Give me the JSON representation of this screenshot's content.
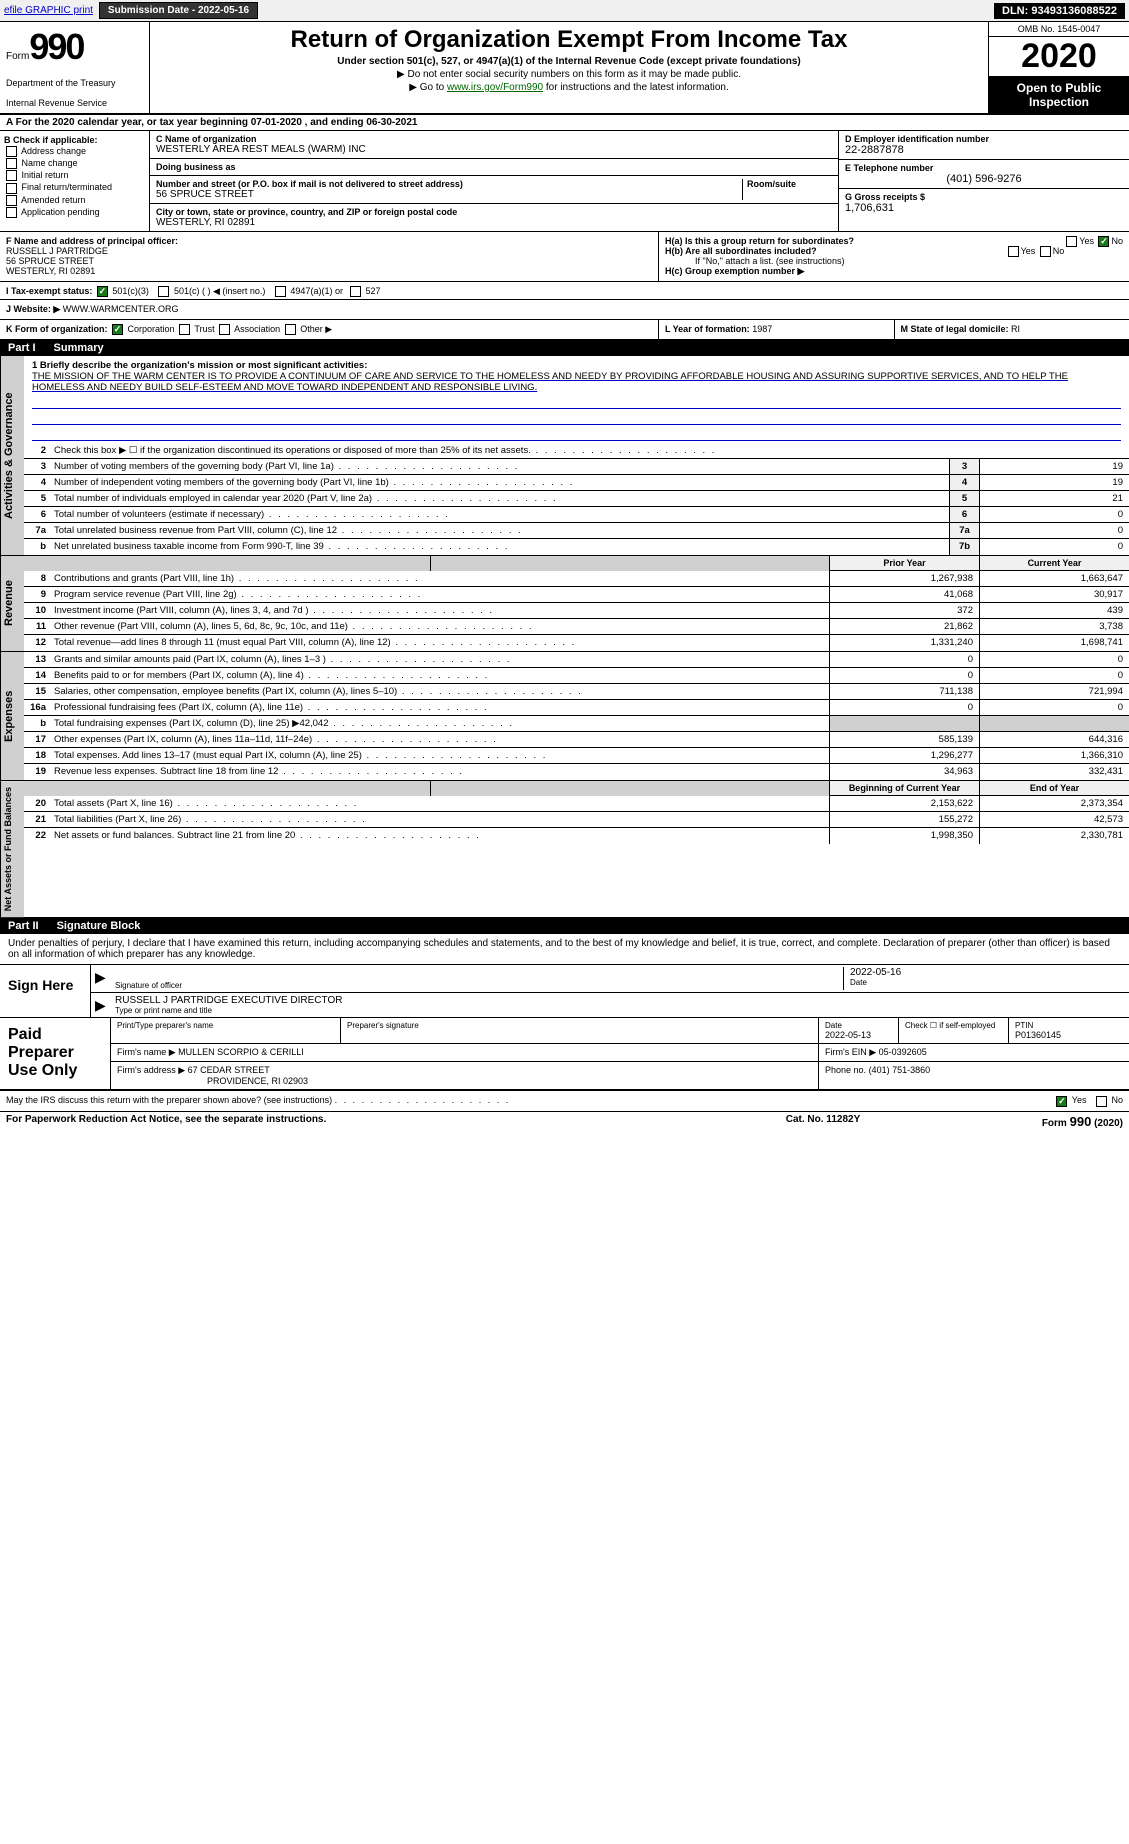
{
  "topbar": {
    "efile": "efile GRAPHIC print",
    "submission_label": "Submission Date - ",
    "submission_date": "2022-05-16",
    "dln_label": "DLN: ",
    "dln": "93493136088522"
  },
  "header": {
    "form_word": "Form",
    "form_number": "990",
    "dept1": "Department of the Treasury",
    "dept2": "Internal Revenue Service",
    "title": "Return of Organization Exempt From Income Tax",
    "subtitle": "Under section 501(c), 527, or 4947(a)(1) of the Internal Revenue Code (except private foundations)",
    "note1": "▶ Do not enter social security numbers on this form as it may be made public.",
    "note2_pre": "▶ Go to ",
    "note2_link": "www.irs.gov/Form990",
    "note2_post": " for instructions and the latest information.",
    "omb": "OMB No. 1545-0047",
    "year": "2020",
    "open": "Open to Public Inspection"
  },
  "sectionA": "A For the 2020 calendar year, or tax year beginning 07-01-2020    , and ending 06-30-2021",
  "boxB": {
    "header": "B Check if applicable:",
    "items": [
      "Address change",
      "Name change",
      "Initial return",
      "Final return/terminated",
      "Amended return",
      "Application pending"
    ]
  },
  "boxC": {
    "name_lbl": "C Name of organization",
    "name": "WESTERLY AREA REST MEALS (WARM) INC",
    "dba_lbl": "Doing business as",
    "dba": "",
    "addr_lbl": "Number and street (or P.O. box if mail is not delivered to street address)",
    "addr": "56 SPRUCE STREET",
    "room_lbl": "Room/suite",
    "city_lbl": "City or town, state or province, country, and ZIP or foreign postal code",
    "city": "WESTERLY, RI  02891"
  },
  "boxD": {
    "lbl": "D Employer identification number",
    "val": "22-2887878"
  },
  "boxE": {
    "lbl": "E Telephone number",
    "val": "(401) 596-9276"
  },
  "boxG": {
    "lbl": "G Gross receipts $",
    "val": "1,706,631"
  },
  "boxF": {
    "lbl": "F  Name and address of principal officer:",
    "name": "RUSSELL J PARTRIDGE",
    "addr1": "56 SPRUCE STREET",
    "addr2": "WESTERLY, RI  02891"
  },
  "boxH": {
    "a_lbl": "H(a)  Is this a group return for subordinates?",
    "b_lbl": "H(b)  Are all subordinates included?",
    "b_note": "If \"No,\" attach a list. (see instructions)",
    "c_lbl": "H(c)  Group exemption number ▶",
    "yes": "Yes",
    "no": "No"
  },
  "boxI": {
    "lbl": "I    Tax-exempt status:",
    "opt1": "501(c)(3)",
    "opt2": "501(c) (   ) ◀ (insert no.)",
    "opt3": "4947(a)(1) or",
    "opt4": "527"
  },
  "boxJ": {
    "lbl": "J   Website: ▶",
    "val": "WWW.WARMCENTER.ORG"
  },
  "boxK": {
    "lbl": "K Form of organization:",
    "opts": [
      "Corporation",
      "Trust",
      "Association",
      "Other ▶"
    ]
  },
  "boxL": {
    "lbl": "L Year of formation:",
    "val": "1987"
  },
  "boxM": {
    "lbl": "M State of legal domicile:",
    "val": "RI"
  },
  "part1": {
    "hdr_num": "Part I",
    "hdr_title": "Summary",
    "line1_lbl": "1  Briefly describe the organization's mission or most significant activities:",
    "mission": "THE MISSION OF THE WARM CENTER IS TO PROVIDE A CONTINUUM OF CARE AND SERVICE TO THE HOMELESS AND NEEDY BY PROVIDING AFFORDABLE HOUSING AND ASSURING SUPPORTIVE SERVICES, AND TO HELP THE HOMELESS AND NEEDY BUILD SELF-ESTEEM AND MOVE TOWARD INDEPENDENT AND RESPONSIBLE LIVING.",
    "sections": {
      "gov": "Activities & Governance",
      "rev": "Revenue",
      "exp": "Expenses",
      "net": "Net Assets or Fund Balances"
    },
    "lines_single": [
      {
        "n": "2",
        "d": "Check this box ▶ ☐ if the organization discontinued its operations or disposed of more than 25% of its net assets."
      },
      {
        "n": "3",
        "d": "Number of voting members of the governing body (Part VI, line 1a)",
        "box": "3",
        "v": "19"
      },
      {
        "n": "4",
        "d": "Number of independent voting members of the governing body (Part VI, line 1b)",
        "box": "4",
        "v": "19"
      },
      {
        "n": "5",
        "d": "Total number of individuals employed in calendar year 2020 (Part V, line 2a)",
        "box": "5",
        "v": "21"
      },
      {
        "n": "6",
        "d": "Total number of volunteers (estimate if necessary)",
        "box": "6",
        "v": "0"
      },
      {
        "n": "7a",
        "d": "Total unrelated business revenue from Part VIII, column (C), line 12",
        "box": "7a",
        "v": "0"
      },
      {
        "n": "b",
        "d": "Net unrelated business taxable income from Form 990-T, line 39",
        "box": "7b",
        "v": "0"
      }
    ],
    "col_hdrs": {
      "prior": "Prior Year",
      "current": "Current Year",
      "beg": "Beginning of Current Year",
      "end": "End of Year"
    },
    "rev_lines": [
      {
        "n": "8",
        "d": "Contributions and grants (Part VIII, line 1h)",
        "p": "1,267,938",
        "c": "1,663,647"
      },
      {
        "n": "9",
        "d": "Program service revenue (Part VIII, line 2g)",
        "p": "41,068",
        "c": "30,917"
      },
      {
        "n": "10",
        "d": "Investment income (Part VIII, column (A), lines 3, 4, and 7d )",
        "p": "372",
        "c": "439"
      },
      {
        "n": "11",
        "d": "Other revenue (Part VIII, column (A), lines 5, 6d, 8c, 9c, 10c, and 11e)",
        "p": "21,862",
        "c": "3,738"
      },
      {
        "n": "12",
        "d": "Total revenue—add lines 8 through 11 (must equal Part VIII, column (A), line 12)",
        "p": "1,331,240",
        "c": "1,698,741"
      }
    ],
    "exp_lines": [
      {
        "n": "13",
        "d": "Grants and similar amounts paid (Part IX, column (A), lines 1–3 )",
        "p": "0",
        "c": "0"
      },
      {
        "n": "14",
        "d": "Benefits paid to or for members (Part IX, column (A), line 4)",
        "p": "0",
        "c": "0"
      },
      {
        "n": "15",
        "d": "Salaries, other compensation, employee benefits (Part IX, column (A), lines 5–10)",
        "p": "711,138",
        "c": "721,994"
      },
      {
        "n": "16a",
        "d": "Professional fundraising fees (Part IX, column (A), line 11e)",
        "p": "0",
        "c": "0"
      },
      {
        "n": "b",
        "d": "Total fundraising expenses (Part IX, column (D), line 25) ▶42,042",
        "p": "",
        "c": "",
        "grey": true
      },
      {
        "n": "17",
        "d": "Other expenses (Part IX, column (A), lines 11a–11d, 11f–24e)",
        "p": "585,139",
        "c": "644,316"
      },
      {
        "n": "18",
        "d": "Total expenses. Add lines 13–17 (must equal Part IX, column (A), line 25)",
        "p": "1,296,277",
        "c": "1,366,310"
      },
      {
        "n": "19",
        "d": "Revenue less expenses. Subtract line 18 from line 12",
        "p": "34,963",
        "c": "332,431"
      }
    ],
    "net_lines": [
      {
        "n": "20",
        "d": "Total assets (Part X, line 16)",
        "p": "2,153,622",
        "c": "2,373,354"
      },
      {
        "n": "21",
        "d": "Total liabilities (Part X, line 26)",
        "p": "155,272",
        "c": "42,573"
      },
      {
        "n": "22",
        "d": "Net assets or fund balances. Subtract line 21 from line 20",
        "p": "1,998,350",
        "c": "2,330,781"
      }
    ]
  },
  "part2": {
    "hdr_num": "Part II",
    "hdr_title": "Signature Block",
    "penalty": "Under penalties of perjury, I declare that I have examined this return, including accompanying schedules and statements, and to the best of my knowledge and belief, it is true, correct, and complete. Declaration of preparer (other than officer) is based on all information of which preparer has any knowledge.",
    "sign_here": "Sign Here",
    "sig_officer_lbl": "Signature of officer",
    "sig_date": "2022-05-16",
    "date_lbl": "Date",
    "officer_name": "RUSSELL J PARTRIDGE  EXECUTIVE DIRECTOR",
    "officer_name_lbl": "Type or print name and title",
    "paid_lbl": "Paid Preparer Use Only",
    "prep": {
      "name_lbl": "Print/Type preparer's name",
      "name": "",
      "sig_lbl": "Preparer's signature",
      "date_lbl": "Date",
      "date": "2022-05-13",
      "selfemp_lbl": "Check ☐ if self-employed",
      "ptin_lbl": "PTIN",
      "ptin": "P01360145",
      "firm_name_lbl": "Firm's name    ▶",
      "firm_name": "MULLEN SCORPIO & CERILLI",
      "firm_ein_lbl": "Firm's EIN ▶",
      "firm_ein": "05-0392605",
      "firm_addr_lbl": "Firm's address ▶",
      "firm_addr1": "67 CEDAR STREET",
      "firm_addr2": "PROVIDENCE, RI  02903",
      "phone_lbl": "Phone no.",
      "phone": "(401) 751-3860"
    },
    "discuss": "May the IRS discuss this return with the preparer shown above? (see instructions)",
    "yes": "Yes",
    "no": "No"
  },
  "footer": {
    "pra": "For Paperwork Reduction Act Notice, see the separate instructions.",
    "cat": "Cat. No. 11282Y",
    "form": "Form 990 (2020)"
  }
}
